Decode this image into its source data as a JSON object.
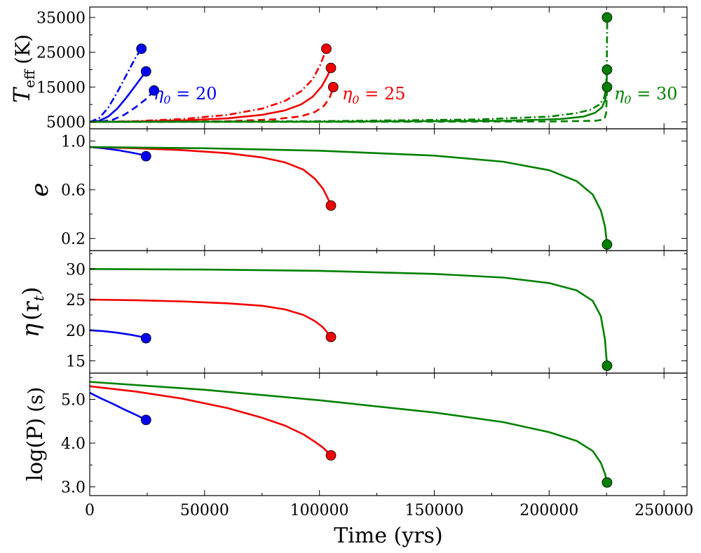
{
  "chart_data": {
    "type": "line",
    "xlabel": "Time (yrs)",
    "xlim": [
      0,
      260000
    ],
    "xticks": [
      0,
      50000,
      100000,
      150000,
      200000,
      250000
    ],
    "xtick_labels": [
      "0",
      "50000",
      "100000",
      "150000",
      "200000",
      "250000"
    ],
    "colors": {
      "eta20": "#0000ee",
      "eta25": "#ee0000",
      "eta30": "#008000"
    },
    "panels": [
      {
        "id": "teff",
        "ylabel_main": "T",
        "ylabel_sub": "eff",
        "ylabel_unit": "(K)",
        "ylim": [
          3000,
          38000
        ],
        "yticks": [
          5000,
          15000,
          25000,
          35000
        ],
        "ytick_labels": [
          "5000",
          "15000",
          "25000",
          "35000"
        ],
        "annotations": [
          {
            "text_main": "η",
            "text_sub": "0",
            "text_val": " = 20",
            "color": "#0000ee",
            "x": 27000,
            "y": 10500
          },
          {
            "text_main": "η",
            "text_sub": "0",
            "text_val": " = 25",
            "color": "#ee0000",
            "x": 109000,
            "y": 10200
          },
          {
            "text_main": "η",
            "text_sub": "0",
            "text_val": " = 30",
            "color": "#008000",
            "x": 228000,
            "y": 10500
          }
        ],
        "series": [
          {
            "name": "eta20 solid",
            "color": "#0000ee",
            "dash": "solid",
            "x": [
              0,
              4000,
              8000,
              12000,
              16000,
              20000,
              23000,
              24500
            ],
            "y": [
              5000,
              5250,
              6500,
              8800,
              12000,
              15500,
              18200,
              19500
            ]
          },
          {
            "name": "eta20 dashed",
            "color": "#0000ee",
            "dash": "dashed",
            "x": [
              0,
              5000,
              10000,
              15000,
              20000,
              25000,
              28000
            ],
            "y": [
              5000,
              5100,
              5600,
              7000,
              9200,
              11800,
              14000
            ]
          },
          {
            "name": "eta20 dashdot",
            "color": "#0000ee",
            "dash": "dashdot",
            "x": [
              0,
              4000,
              8000,
              12000,
              16000,
              20000,
              22500
            ],
            "y": [
              5000,
              6000,
              9000,
              13500,
              18500,
              23500,
              26000
            ]
          },
          {
            "name": "eta25 solid",
            "color": "#ee0000",
            "dash": "solid",
            "x": [
              0,
              20000,
              40000,
              60000,
              75000,
              85000,
              92000,
              97000,
              101000,
              103500,
              105000
            ],
            "y": [
              5000,
              5100,
              5400,
              6000,
              7000,
              8300,
              10000,
              12200,
              15200,
              18200,
              20500
            ]
          },
          {
            "name": "eta25 dashed",
            "color": "#ee0000",
            "dash": "dashed",
            "x": [
              0,
              30000,
              60000,
              80000,
              92000,
              98000,
              102000,
              104500,
              106000
            ],
            "y": [
              5000,
              5000,
              5200,
              5700,
              6600,
              7800,
              9600,
              12000,
              15000
            ]
          },
          {
            "name": "eta25 dashdot",
            "color": "#ee0000",
            "dash": "dashdot",
            "x": [
              0,
              20000,
              40000,
              60000,
              75000,
              85000,
              92000,
              97000,
              100500,
              103000
            ],
            "y": [
              5000,
              5200,
              5800,
              7000,
              8800,
              11000,
              13800,
              17200,
              21500,
              26000
            ]
          },
          {
            "name": "eta30 solid",
            "color": "#008000",
            "dash": "solid",
            "x": [
              0,
              100000,
              180000,
              205000,
              215000,
              220000,
              223000,
              224500,
              225000,
              225200
            ],
            "y": [
              5000,
              5050,
              5300,
              5800,
              6500,
              7600,
              9200,
              11500,
              15000,
              20000
            ]
          },
          {
            "name": "eta30 dashed",
            "color": "#008000",
            "dash": "dashed",
            "x": [
              0,
              100000,
              200000,
              220000,
              224000,
              224800,
              225000,
              225200
            ],
            "y": [
              5000,
              5000,
              5100,
              5300,
              5700,
              7500,
              11000,
              15000
            ]
          },
          {
            "name": "eta30 dashdot",
            "color": "#008000",
            "dash": "dashdot",
            "x": [
              0,
              100000,
              170000,
              200000,
              212000,
              218000,
              222000,
              224000,
              224800,
              225100,
              225300
            ],
            "y": [
              5000,
              5200,
              5700,
              6500,
              7500,
              8500,
              10000,
              12000,
              15000,
              22000,
              35000
            ]
          }
        ],
        "markers": [
          {
            "x": 22500,
            "y": 26000,
            "color": "#0000ee"
          },
          {
            "x": 24500,
            "y": 19500,
            "color": "#0000ee"
          },
          {
            "x": 28000,
            "y": 14000,
            "color": "#0000ee"
          },
          {
            "x": 103000,
            "y": 26000,
            "color": "#ee0000"
          },
          {
            "x": 105000,
            "y": 20500,
            "color": "#ee0000"
          },
          {
            "x": 106000,
            "y": 15000,
            "color": "#ee0000"
          },
          {
            "x": 225200,
            "y": 35000,
            "color": "#008000"
          },
          {
            "x": 225200,
            "y": 20000,
            "color": "#008000"
          },
          {
            "x": 225200,
            "y": 15000,
            "color": "#008000"
          }
        ]
      },
      {
        "id": "ecc",
        "ylabel_main": "e",
        "ylim": [
          0.1,
          1.1
        ],
        "yticks": [
          0.2,
          0.6,
          1.0
        ],
        "ytick_labels": [
          "0.2",
          "0.6",
          "1.0"
        ],
        "series": [
          {
            "name": "eta20",
            "color": "#0000ee",
            "dash": "solid",
            "x": [
              0,
              6000,
              12000,
              18000,
              22000,
              24500
            ],
            "y": [
              0.95,
              0.94,
              0.925,
              0.905,
              0.89,
              0.875
            ]
          },
          {
            "name": "eta25",
            "color": "#ee0000",
            "dash": "solid",
            "x": [
              0,
              20000,
              40000,
              60000,
              75000,
              85000,
              93000,
              98000,
              101500,
              103500,
              105000
            ],
            "y": [
              0.95,
              0.94,
              0.925,
              0.9,
              0.865,
              0.825,
              0.765,
              0.69,
              0.61,
              0.535,
              0.47
            ]
          },
          {
            "name": "eta30",
            "color": "#008000",
            "dash": "solid",
            "x": [
              0,
              50000,
              100000,
              150000,
              180000,
              200000,
              212000,
              219000,
              222500,
              224300,
              225200
            ],
            "y": [
              0.95,
              0.94,
              0.92,
              0.88,
              0.83,
              0.76,
              0.67,
              0.56,
              0.43,
              0.3,
              0.15
            ]
          }
        ],
        "markers": [
          {
            "x": 24500,
            "y": 0.875,
            "color": "#0000ee"
          },
          {
            "x": 105000,
            "y": 0.47,
            "color": "#ee0000"
          },
          {
            "x": 225200,
            "y": 0.15,
            "color": "#008000"
          }
        ]
      },
      {
        "id": "eta",
        "ylabel_main": "η",
        "ylabel_paren": "(r",
        "ylabel_sub": "t",
        "ylabel_close": ")",
        "ylim": [
          13,
          33
        ],
        "yticks": [
          15,
          20,
          25,
          30
        ],
        "ytick_labels": [
          "15",
          "20",
          "25",
          "30"
        ],
        "series": [
          {
            "name": "eta20",
            "color": "#0000ee",
            "dash": "solid",
            "x": [
              0,
              6000,
              12000,
              18000,
              22000,
              24500
            ],
            "y": [
              20,
              19.85,
              19.6,
              19.25,
              18.95,
              18.7
            ]
          },
          {
            "name": "eta25",
            "color": "#ee0000",
            "dash": "solid",
            "x": [
              0,
              20000,
              40000,
              60000,
              75000,
              85000,
              93000,
              98000,
              101500,
              103500,
              105000
            ],
            "y": [
              25,
              24.9,
              24.7,
              24.4,
              24.0,
              23.4,
              22.5,
              21.5,
              20.5,
              19.6,
              18.9
            ]
          },
          {
            "name": "eta30",
            "color": "#008000",
            "dash": "solid",
            "x": [
              0,
              50000,
              100000,
              150000,
              180000,
              200000,
              212000,
              219000,
              222500,
              224300,
              225200
            ],
            "y": [
              30,
              29.9,
              29.7,
              29.2,
              28.6,
              27.7,
              26.5,
              24.8,
              22.3,
              18.5,
              14.2
            ]
          }
        ],
        "markers": [
          {
            "x": 24500,
            "y": 18.7,
            "color": "#0000ee"
          },
          {
            "x": 105000,
            "y": 18.9,
            "color": "#ee0000"
          },
          {
            "x": 225200,
            "y": 14.2,
            "color": "#008000"
          }
        ]
      },
      {
        "id": "logp",
        "ylabel_main": "log(P)",
        "ylabel_unit": "(s)",
        "ylim": [
          2.8,
          5.6
        ],
        "yticks": [
          3.0,
          4.0,
          5.0
        ],
        "ytick_labels": [
          "3.0",
          "4.0",
          "5.0"
        ],
        "series": [
          {
            "name": "eta20",
            "color": "#0000ee",
            "dash": "solid",
            "x": [
              0,
              5000,
              10000,
              15000,
              20000,
              24500
            ],
            "y": [
              5.15,
              5.02,
              4.9,
              4.77,
              4.65,
              4.53
            ]
          },
          {
            "name": "eta25",
            "color": "#ee0000",
            "dash": "solid",
            "x": [
              0,
              20000,
              40000,
              60000,
              75000,
              85000,
              93000,
              98000,
              101500,
              103500,
              105000
            ],
            "y": [
              5.3,
              5.18,
              5.02,
              4.8,
              4.58,
              4.4,
              4.2,
              4.03,
              3.9,
              3.8,
              3.72
            ]
          },
          {
            "name": "eta30",
            "color": "#008000",
            "dash": "solid",
            "x": [
              0,
              50000,
              100000,
              150000,
              180000,
              200000,
              212000,
              219000,
              222500,
              224300,
              225200
            ],
            "y": [
              5.4,
              5.22,
              4.98,
              4.7,
              4.48,
              4.25,
              4.05,
              3.82,
              3.55,
              3.3,
              3.1
            ]
          }
        ],
        "markers": [
          {
            "x": 24500,
            "y": 4.53,
            "color": "#0000ee"
          },
          {
            "x": 105000,
            "y": 3.72,
            "color": "#ee0000"
          },
          {
            "x": 225200,
            "y": 3.1,
            "color": "#008000"
          }
        ]
      }
    ]
  }
}
